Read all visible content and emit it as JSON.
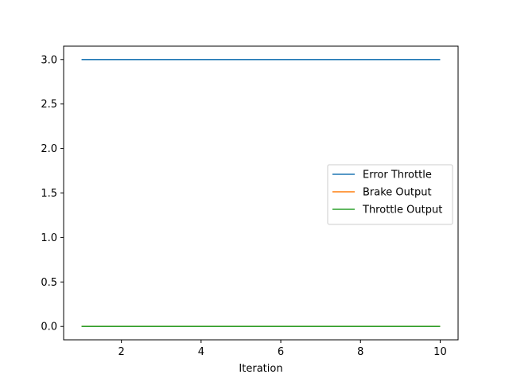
{
  "chart_data": {
    "type": "line",
    "title": "",
    "xlabel": "Iteration",
    "ylabel": "",
    "xlim": [
      0.55,
      10.45
    ],
    "ylim": [
      -0.15,
      3.15
    ],
    "xticks": [
      2,
      4,
      6,
      8,
      10
    ],
    "yticks": [
      0.0,
      0.5,
      1.0,
      1.5,
      2.0,
      2.5,
      3.0
    ],
    "xtick_labels": [
      "2",
      "4",
      "6",
      "8",
      "10"
    ],
    "ytick_labels": [
      "0.0",
      "0.5",
      "1.0",
      "1.5",
      "2.0",
      "2.5",
      "3.0"
    ],
    "grid": false,
    "legend_position": "center-right",
    "x": [
      1,
      2,
      3,
      4,
      5,
      6,
      7,
      8,
      9,
      10
    ],
    "series": [
      {
        "name": "Error Throttle",
        "color": "#1f77b4",
        "values": [
          3,
          3,
          3,
          3,
          3,
          3,
          3,
          3,
          3,
          3
        ]
      },
      {
        "name": "Brake Output",
        "color": "#ff7f0e",
        "values": [
          0,
          0,
          0,
          0,
          0,
          0,
          0,
          0,
          0,
          0
        ]
      },
      {
        "name": "Throttle Output",
        "color": "#2ca02c",
        "values": [
          0,
          0,
          0,
          0,
          0,
          0,
          0,
          0,
          0,
          0
        ]
      }
    ]
  }
}
